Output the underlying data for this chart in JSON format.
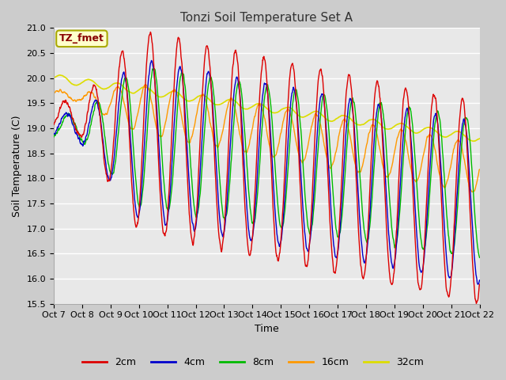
{
  "title": "Tonzi Soil Temperature Set A",
  "ylabel": "Soil Temperature (C)",
  "xlabel": "Time",
  "ylim": [
    15.5,
    21.0
  ],
  "yticks": [
    15.5,
    16.0,
    16.5,
    17.0,
    17.5,
    18.0,
    18.5,
    19.0,
    19.5,
    20.0,
    20.5,
    21.0
  ],
  "xtick_labels": [
    "Oct 7",
    "Oct 8",
    "Oct 9",
    "Oct 10",
    "Oct 11",
    "Oct 12",
    "Oct 13",
    "Oct 14",
    "Oct 15",
    "Oct 16",
    "Oct 17",
    "Oct 18",
    "Oct 19",
    "Oct 20",
    "Oct 21",
    "Oct 22"
  ],
  "colors": {
    "2cm": "#dd0000",
    "4cm": "#0000cc",
    "8cm": "#00bb00",
    "16cm": "#ff9900",
    "32cm": "#dddd00"
  },
  "legend_label": "TZ_fmet",
  "fig_bg": "#cccccc",
  "plot_bg": "#e8e8e8",
  "title_fontsize": 11,
  "axis_fontsize": 9,
  "tick_fontsize": 8
}
